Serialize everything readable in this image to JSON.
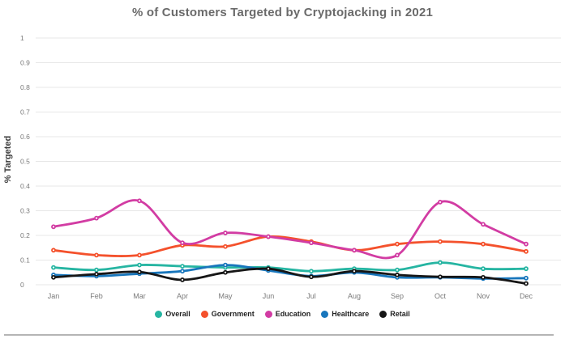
{
  "chart_data": {
    "type": "line",
    "title": "% of Customers Targeted by Cryptojacking in 2021",
    "xlabel": "",
    "ylabel": "% Targeted",
    "ylim": [
      0,
      1
    ],
    "yticks": [
      0,
      0.1,
      0.2,
      0.3,
      0.4,
      0.5,
      0.6,
      0.7,
      0.8,
      0.9,
      1
    ],
    "grid": "horizontal",
    "legend_position": "bottom",
    "marker": "dot-with-white-center",
    "categories": [
      "Jan",
      "Feb",
      "Mar",
      "Apr",
      "May",
      "Jun",
      "Jul",
      "Aug",
      "Sep",
      "Oct",
      "Nov",
      "Dec"
    ],
    "series": [
      {
        "name": "Overall",
        "color": "#26b5a2",
        "values": [
          0.07,
          0.06,
          0.08,
          0.075,
          0.07,
          0.07,
          0.055,
          0.065,
          0.06,
          0.09,
          0.065,
          0.065
        ]
      },
      {
        "name": "Government",
        "color": "#f4512c",
        "values": [
          0.14,
          0.12,
          0.12,
          0.16,
          0.155,
          0.195,
          0.175,
          0.14,
          0.165,
          0.175,
          0.165,
          0.135
        ]
      },
      {
        "name": "Education",
        "color": "#d23ca3",
        "values": [
          0.235,
          0.27,
          0.34,
          0.17,
          0.21,
          0.195,
          0.17,
          0.14,
          0.12,
          0.335,
          0.245,
          0.165
        ]
      },
      {
        "name": "Healthcare",
        "color": "#1876bc",
        "values": [
          0.04,
          0.035,
          0.045,
          0.055,
          0.08,
          0.058,
          0.035,
          0.05,
          0.03,
          0.03,
          0.025,
          0.027
        ]
      },
      {
        "name": "Retail",
        "color": "#161616",
        "values": [
          0.03,
          0.043,
          0.052,
          0.02,
          0.05,
          0.065,
          0.032,
          0.055,
          0.04,
          0.032,
          0.03,
          0.005
        ]
      }
    ]
  },
  "colors": {
    "title_text": "#6a6a6a",
    "tick_text": "#7a7a7a",
    "gridline": "#e7e7e7",
    "legend_text": "#222222",
    "divider": "#b5b5b5",
    "background": "#ffffff"
  }
}
